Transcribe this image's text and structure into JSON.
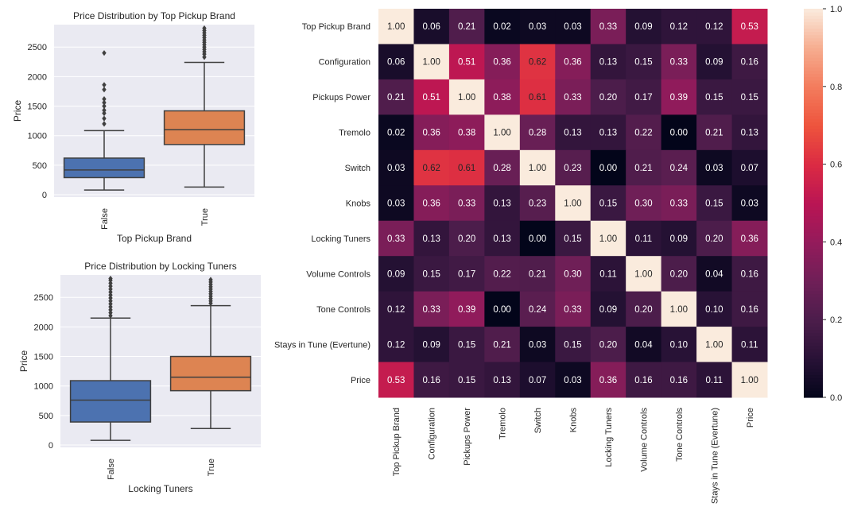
{
  "chart_data": [
    {
      "type": "box",
      "title": "Price Distribution by Top Pickup Brand",
      "xlabel": "Top Pickup Brand",
      "ylabel": "Price",
      "ylim": [
        -40,
        2880
      ],
      "yticks": [
        0,
        500,
        1000,
        1500,
        2000,
        2500
      ],
      "grid": true,
      "categories": [
        "False",
        "True"
      ],
      "colors": [
        "#4c72b0",
        "#dd8452"
      ],
      "boxes": [
        {
          "category": "False",
          "whislo": 80,
          "q1": 290,
          "med": 420,
          "q3": 620,
          "whishi": 1085,
          "fliers": [
            1200,
            1290,
            1380,
            1430,
            1500,
            1560,
            1620,
            1780,
            1860,
            2400
          ]
        },
        {
          "category": "True",
          "whislo": 130,
          "q1": 850,
          "med": 1100,
          "q3": 1420,
          "whishi": 2240,
          "fliers": [
            2330,
            2380,
            2420,
            2460,
            2500,
            2540,
            2580,
            2620,
            2660,
            2700,
            2740,
            2780,
            2820
          ]
        }
      ]
    },
    {
      "type": "box",
      "title": "Price Distribution by Locking Tuners",
      "xlabel": "Locking Tuners",
      "ylabel": "Price",
      "ylim": [
        -40,
        2880
      ],
      "yticks": [
        0,
        500,
        1000,
        1500,
        2000,
        2500
      ],
      "grid": true,
      "categories": [
        "False",
        "True"
      ],
      "colors": [
        "#4c72b0",
        "#dd8452"
      ],
      "boxes": [
        {
          "category": "False",
          "whislo": 80,
          "q1": 390,
          "med": 760,
          "q3": 1090,
          "whishi": 2150,
          "fliers": [
            2190,
            2240,
            2290,
            2340,
            2390,
            2440,
            2490,
            2540,
            2590,
            2640,
            2690,
            2740,
            2790,
            2820
          ]
        },
        {
          "category": "True",
          "whislo": 280,
          "q1": 920,
          "med": 1150,
          "q3": 1500,
          "whishi": 2360,
          "fliers": [
            2400,
            2440,
            2480,
            2520,
            2560,
            2600,
            2640,
            2680,
            2720,
            2760,
            2800
          ]
        }
      ]
    },
    {
      "type": "heatmap",
      "labels": [
        "Top Pickup Brand",
        "Configuration",
        "Pickups Power",
        "Tremolo",
        "Switch",
        "Knobs",
        "Locking Tuners",
        "Volume Controls",
        "Tone Controls",
        "Stays in Tune (Evertune)",
        "Price"
      ],
      "matrix": [
        [
          1.0,
          0.06,
          0.21,
          0.02,
          0.03,
          0.03,
          0.33,
          0.09,
          0.12,
          0.12,
          0.53
        ],
        [
          0.06,
          1.0,
          0.51,
          0.36,
          0.62,
          0.36,
          0.13,
          0.15,
          0.33,
          0.09,
          0.16
        ],
        [
          0.21,
          0.51,
          1.0,
          0.38,
          0.61,
          0.33,
          0.2,
          0.17,
          0.39,
          0.15,
          0.15
        ],
        [
          0.02,
          0.36,
          0.38,
          1.0,
          0.28,
          0.13,
          0.13,
          0.22,
          0.0,
          0.21,
          0.13
        ],
        [
          0.03,
          0.62,
          0.61,
          0.28,
          1.0,
          0.23,
          0.0,
          0.21,
          0.24,
          0.03,
          0.07
        ],
        [
          0.03,
          0.36,
          0.33,
          0.13,
          0.23,
          1.0,
          0.15,
          0.3,
          0.33,
          0.15,
          0.03
        ],
        [
          0.33,
          0.13,
          0.2,
          0.13,
          0.0,
          0.15,
          1.0,
          0.11,
          0.09,
          0.2,
          0.36
        ],
        [
          0.09,
          0.15,
          0.17,
          0.22,
          0.21,
          0.3,
          0.11,
          1.0,
          0.2,
          0.04,
          0.16
        ],
        [
          0.12,
          0.33,
          0.39,
          0.0,
          0.24,
          0.33,
          0.09,
          0.2,
          1.0,
          0.1,
          0.16
        ],
        [
          0.12,
          0.09,
          0.15,
          0.21,
          0.03,
          0.15,
          0.2,
          0.04,
          0.1,
          1.0,
          0.11
        ],
        [
          0.53,
          0.16,
          0.15,
          0.13,
          0.07,
          0.03,
          0.36,
          0.16,
          0.16,
          0.11,
          1.0
        ]
      ],
      "vmin": 0,
      "vmax": 1,
      "colorbar_ticks": [
        0.0,
        0.2,
        0.4,
        0.6,
        0.8,
        1.0
      ],
      "colormap": "rocket",
      "annotated": true
    }
  ]
}
